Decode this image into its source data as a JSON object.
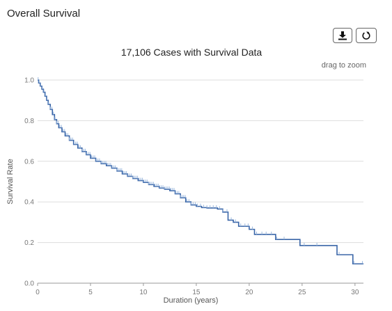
{
  "panel": {
    "title": "Overall Survival"
  },
  "toolbar": {
    "download_icon": "download-icon",
    "reset_icon": "reset-icon"
  },
  "chart_data": {
    "type": "line",
    "title": "17,106 Cases with Survival Data",
    "hint": "drag to zoom",
    "xlabel": "Duration (years)",
    "ylabel": "Survival Rate",
    "xlim": [
      0,
      30.8
    ],
    "ylim": [
      0,
      1.0
    ],
    "xticks": [
      0,
      5,
      10,
      15,
      20,
      25,
      30
    ],
    "yticks": [
      0.0,
      0.2,
      0.4,
      0.6,
      0.8,
      1.0
    ],
    "xtick_labels": [
      "0",
      "5",
      "10",
      "15",
      "20",
      "25",
      "30"
    ],
    "ytick_labels": [
      "0.0",
      "0.2",
      "0.4",
      "0.6",
      "0.8",
      "1.0"
    ],
    "grid": true,
    "series": [
      {
        "color": "#3a66a8",
        "censor_color": "#9ab7dd",
        "step": true,
        "points": [
          [
            0,
            1.0
          ],
          [
            0.1,
            0.985
          ],
          [
            0.25,
            0.97
          ],
          [
            0.4,
            0.955
          ],
          [
            0.55,
            0.94
          ],
          [
            0.7,
            0.92
          ],
          [
            0.85,
            0.9
          ],
          [
            1.0,
            0.88
          ],
          [
            1.2,
            0.855
          ],
          [
            1.4,
            0.83
          ],
          [
            1.6,
            0.805
          ],
          [
            1.8,
            0.785
          ],
          [
            2.0,
            0.765
          ],
          [
            2.3,
            0.745
          ],
          [
            2.6,
            0.725
          ],
          [
            3.0,
            0.703
          ],
          [
            3.4,
            0.683
          ],
          [
            3.8,
            0.665
          ],
          [
            4.2,
            0.648
          ],
          [
            4.6,
            0.632
          ],
          [
            5.0,
            0.615
          ],
          [
            5.5,
            0.6
          ],
          [
            6.0,
            0.588
          ],
          [
            6.5,
            0.578
          ],
          [
            7.0,
            0.566
          ],
          [
            7.5,
            0.552
          ],
          [
            8.0,
            0.538
          ],
          [
            8.5,
            0.526
          ],
          [
            9.0,
            0.515
          ],
          [
            9.5,
            0.505
          ],
          [
            10.0,
            0.496
          ],
          [
            10.5,
            0.485
          ],
          [
            11.0,
            0.476
          ],
          [
            11.5,
            0.468
          ],
          [
            12.0,
            0.462
          ],
          [
            12.5,
            0.455
          ],
          [
            13.0,
            0.44
          ],
          [
            13.5,
            0.42
          ],
          [
            14.0,
            0.4
          ],
          [
            14.5,
            0.385
          ],
          [
            15.0,
            0.378
          ],
          [
            15.5,
            0.372
          ],
          [
            16.0,
            0.37
          ],
          [
            17.0,
            0.365
          ],
          [
            17.5,
            0.35
          ],
          [
            18.0,
            0.31
          ],
          [
            18.5,
            0.3
          ],
          [
            19.0,
            0.28
          ],
          [
            20.0,
            0.265
          ],
          [
            20.5,
            0.24
          ],
          [
            22.5,
            0.215
          ],
          [
            24.8,
            0.185
          ],
          [
            28.3,
            0.14
          ],
          [
            29.8,
            0.095
          ],
          [
            30.8,
            0.095
          ]
        ],
        "censored": [
          0.05,
          0.15,
          0.3,
          0.45,
          0.6,
          0.75,
          0.9,
          1.05,
          1.2,
          1.35,
          1.5,
          1.65,
          1.8,
          1.95,
          2.1,
          2.25,
          2.4,
          2.55,
          2.7,
          2.85,
          3.0,
          3.15,
          3.3,
          3.45,
          3.6,
          3.75,
          3.9,
          4.05,
          4.2,
          4.35,
          4.5,
          4.65,
          4.8,
          4.95,
          5.1,
          5.25,
          5.4,
          5.55,
          5.7,
          5.85,
          6.0,
          6.15,
          6.3,
          6.45,
          6.6,
          6.75,
          6.9,
          7.05,
          7.2,
          7.35,
          7.5,
          7.65,
          7.8,
          7.95,
          8.1,
          8.25,
          8.4,
          8.55,
          8.7,
          8.85,
          9.0,
          9.15,
          9.3,
          9.45,
          9.6,
          9.75,
          9.9,
          10.05,
          10.2,
          10.35,
          10.5,
          10.65,
          10.8,
          10.95,
          11.1,
          11.25,
          11.4,
          11.55,
          11.7,
          11.85,
          12.0,
          12.15,
          12.3,
          12.45,
          12.6,
          12.75,
          12.9,
          13.05,
          13.2,
          13.35,
          13.5,
          13.65,
          13.8,
          13.95,
          14.1,
          14.3,
          14.5,
          14.7,
          14.9,
          15.1,
          15.4,
          15.7,
          16.0,
          16.3,
          16.6,
          16.9,
          17.2,
          17.5,
          17.9,
          18.3,
          18.7,
          19.2,
          19.6,
          19.9,
          20.3,
          20.7,
          21.2,
          21.6,
          22.1,
          22.6,
          23.3,
          25.2,
          26.4,
          28.5,
          29.9,
          30.7
        ]
      }
    ]
  }
}
